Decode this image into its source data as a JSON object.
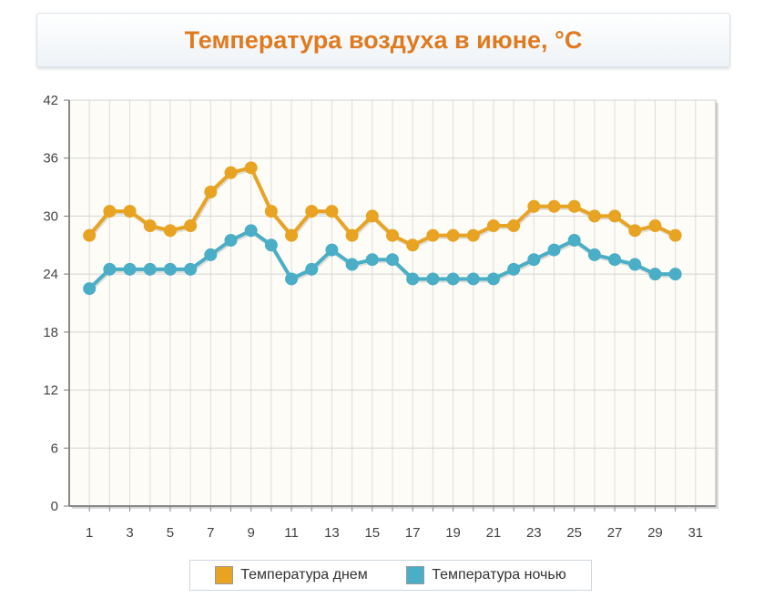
{
  "header": {
    "title": "Температура воздуха в июне, °C"
  },
  "chart_data": {
    "type": "line",
    "title": "Температура воздуха в июне, °C",
    "xlabel": "",
    "ylabel": "",
    "xlim": [
      0,
      32
    ],
    "ylim": [
      0,
      42
    ],
    "x_ticks": [
      1,
      3,
      5,
      7,
      9,
      11,
      13,
      15,
      17,
      19,
      21,
      23,
      25,
      27,
      29,
      31
    ],
    "y_ticks": [
      0,
      6,
      12,
      18,
      24,
      30,
      36,
      42
    ],
    "grid": true,
    "legend_position": "bottom",
    "x": [
      1,
      2,
      3,
      4,
      5,
      6,
      7,
      8,
      9,
      10,
      11,
      12,
      13,
      14,
      15,
      16,
      17,
      18,
      19,
      20,
      21,
      22,
      23,
      24,
      25,
      26,
      27,
      28,
      29,
      30
    ],
    "series": [
      {
        "name": "Температура днем",
        "color": "#e8a323",
        "values": [
          28,
          30.5,
          30.5,
          29,
          28.5,
          29,
          32.5,
          34.5,
          35,
          30.5,
          28,
          30.5,
          30.5,
          28,
          30,
          28,
          27,
          28,
          28,
          28,
          29,
          29,
          31,
          31,
          31,
          30,
          30,
          28.5,
          29,
          28
        ]
      },
      {
        "name": "Температура ночью",
        "color": "#4aaec6",
        "values": [
          22.5,
          24.5,
          24.5,
          24.5,
          24.5,
          24.5,
          26,
          27.5,
          28.5,
          27,
          23.5,
          24.5,
          26.5,
          25,
          25.5,
          25.5,
          23.5,
          23.5,
          23.5,
          23.5,
          23.5,
          24.5,
          25.5,
          26.5,
          27.5,
          26,
          25.5,
          25,
          24,
          24
        ]
      }
    ]
  }
}
